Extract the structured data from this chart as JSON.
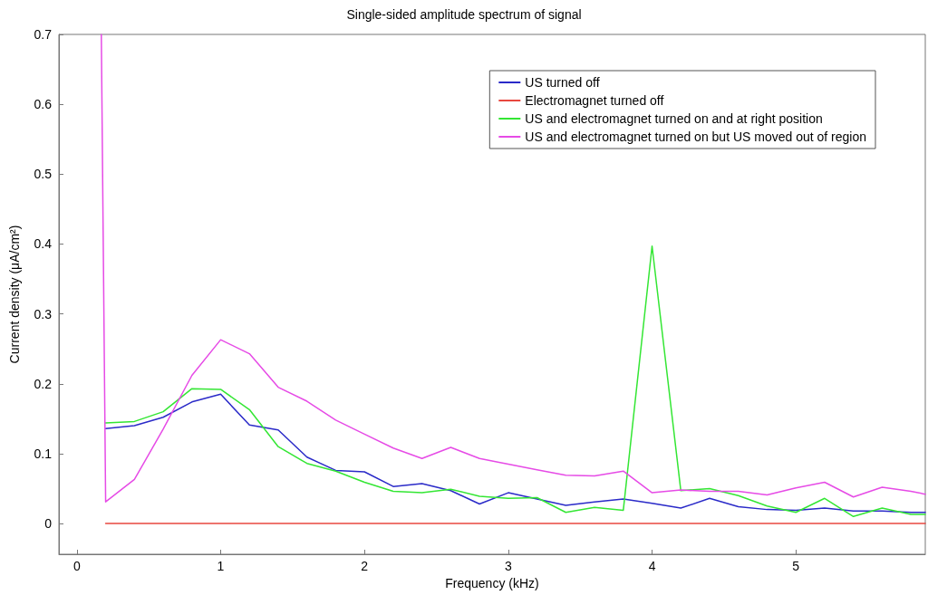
{
  "chart_data": {
    "type": "line",
    "title": "Single-sided amplitude spectrum of signal",
    "xlabel": "Frequency (kHz)",
    "ylabel": "Current density (μA/cm²)",
    "x": [
      0.17,
      0.2,
      0.4,
      0.6,
      0.8,
      1.0,
      1.2,
      1.4,
      1.6,
      1.8,
      2.0,
      2.2,
      2.4,
      2.6,
      2.8,
      3.0,
      3.2,
      3.4,
      3.6,
      3.8,
      4.0,
      4.2,
      4.4,
      4.6,
      4.8,
      5.0,
      5.2,
      5.4,
      5.6,
      5.8,
      5.9
    ],
    "series": [
      {
        "name": "US turned off",
        "color": "#2a2ac8",
        "values": [
          null,
          0.136,
          0.14,
          0.152,
          0.174,
          0.185,
          0.141,
          0.134,
          0.095,
          0.076,
          0.074,
          0.053,
          0.057,
          0.047,
          0.028,
          0.044,
          0.035,
          0.026,
          0.031,
          0.035,
          0.029,
          0.022,
          0.036,
          0.024,
          0.02,
          0.019,
          0.022,
          0.018,
          0.018,
          0.016,
          0.016
        ]
      },
      {
        "name": "Electromagnet turned off",
        "color": "#e8473f",
        "values": [
          null,
          0,
          0,
          0,
          0,
          0,
          0,
          0,
          0,
          0,
          0,
          0,
          0,
          0,
          0,
          0,
          0,
          0,
          0,
          0,
          0,
          0,
          0,
          0,
          0,
          0,
          0,
          0,
          0,
          0,
          0
        ]
      },
      {
        "name": "US and electromagnet turned on and at right position",
        "color": "#33e633",
        "values": [
          null,
          0.144,
          0.146,
          0.16,
          0.193,
          0.192,
          0.163,
          0.11,
          0.086,
          0.075,
          0.059,
          0.046,
          0.044,
          0.049,
          0.039,
          0.036,
          0.037,
          0.016,
          0.023,
          0.019,
          0.397,
          0.047,
          0.05,
          0.04,
          0.025,
          0.016,
          0.036,
          0.01,
          0.022,
          0.013,
          0.013
        ]
      },
      {
        "name": "US and electromagnet turned on but US moved out of region",
        "color": "#e64be6",
        "values": [
          0.7,
          0.031,
          0.063,
          0.135,
          0.212,
          0.263,
          0.243,
          0.195,
          0.175,
          0.148,
          0.128,
          0.108,
          0.093,
          0.109,
          0.093,
          0.085,
          0.077,
          0.069,
          0.068,
          0.075,
          0.044,
          0.048,
          0.046,
          0.046,
          0.041,
          0.051,
          0.059,
          0.038,
          0.052,
          0.046,
          0.042
        ]
      }
    ],
    "xlim": [
      -0.125,
      5.9
    ],
    "xticks": [
      0,
      1,
      2,
      3,
      4,
      5
    ],
    "ylim": [
      -0.044,
      0.7
    ],
    "yticks": [
      0,
      0.1,
      0.2,
      0.3,
      0.4,
      0.5,
      0.6,
      0.7
    ],
    "grid": false,
    "legend": "top right",
    "marker": "none",
    "line_style": "solid"
  }
}
